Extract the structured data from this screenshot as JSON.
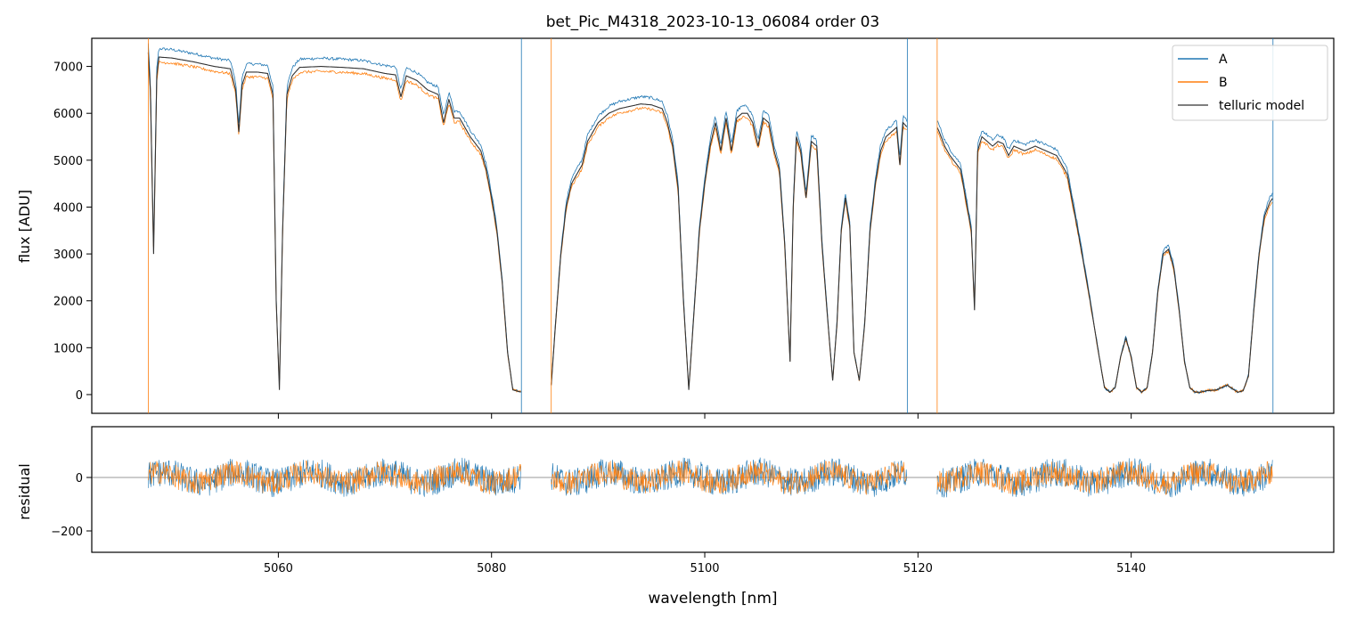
{
  "chart_data": [
    {
      "type": "line",
      "title": "bet_Pic_M4318_2023-10-13_06084  order 03",
      "xlabel": "",
      "ylabel": "flux [ADU]",
      "xlim": [
        5042.5,
        5159.0
      ],
      "ylim": [
        -400,
        7600
      ],
      "yticks": [
        0,
        1000,
        2000,
        3000,
        4000,
        5000,
        6000,
        7000
      ],
      "xticks": [
        5060,
        5080,
        5100,
        5120,
        5140
      ],
      "legend_position": "top-right",
      "legend": [
        "A",
        "B",
        "telluric model"
      ],
      "colors": {
        "A": "#1f77b4",
        "B": "#ff7f0e",
        "telluric model": "#333333"
      },
      "series": [
        {
          "name": "A"
        },
        {
          "name": "B"
        },
        {
          "name": "telluric model",
          "x": [
            5047.8,
            5048.0,
            5048.3,
            5048.6,
            5048.8,
            5050,
            5052,
            5054,
            5055.5,
            5056,
            5056.3,
            5056.6,
            5057,
            5058,
            5059,
            5059.5,
            5059.8,
            5060.1,
            5060.4,
            5060.8,
            5061.3,
            5062,
            5064,
            5066,
            5068,
            5069,
            5070,
            5071,
            5071.5,
            5072,
            5073,
            5074,
            5075,
            5075.5,
            5076,
            5076.5,
            5077,
            5078,
            5079,
            5079.5,
            5080,
            5080.5,
            5081,
            5081.5,
            5082,
            5082.8,
            5085.6,
            5086,
            5086.5,
            5087,
            5087.5,
            5088,
            5088.5,
            5089,
            5090,
            5091,
            5092,
            5093,
            5094,
            5095,
            5096,
            5096.5,
            5097,
            5097.5,
            5098,
            5098.5,
            5099,
            5099.5,
            5100,
            5100.5,
            5101,
            5101.5,
            5102,
            5102.5,
            5103,
            5103.5,
            5104,
            5104.5,
            5105,
            5105.5,
            5106,
            5106.5,
            5107,
            5107.5,
            5108,
            5108.3,
            5108.6,
            5109,
            5109.5,
            5110,
            5110.5,
            5111,
            5111.5,
            5112,
            5112.4,
            5112.8,
            5113.2,
            5113.6,
            5114,
            5114.5,
            5115,
            5115.5,
            5116,
            5116.5,
            5117,
            5117.5,
            5118,
            5118.3,
            5118.6,
            5119,
            5121.8,
            5122,
            5122.5,
            5123,
            5124,
            5125,
            5125.3,
            5125.6,
            5126,
            5127,
            5127.5,
            5128,
            5128.5,
            5129,
            5130,
            5131,
            5132,
            5133,
            5134,
            5135,
            5136,
            5137,
            5137.5,
            5138,
            5138.5,
            5139,
            5139.5,
            5140,
            5140.5,
            5141,
            5141.5,
            5142,
            5142.5,
            5143,
            5143.5,
            5144,
            5144.5,
            5145,
            5145.5,
            5146,
            5146.5,
            5147,
            5148,
            5149,
            5150,
            5150.5,
            5151,
            5151.5,
            5152,
            5152.5,
            5153,
            5153.3
          ],
          "y": [
            7300,
            6500,
            3000,
            6800,
            7200,
            7180,
            7100,
            7000,
            6950,
            6500,
            5600,
            6600,
            6880,
            6880,
            6850,
            6400,
            2000,
            100,
            3500,
            6400,
            6800,
            6980,
            7000,
            6980,
            6950,
            6900,
            6850,
            6820,
            6350,
            6800,
            6700,
            6500,
            6400,
            5800,
            6300,
            5900,
            5900,
            5500,
            5200,
            4800,
            4200,
            3500,
            2400,
            900,
            100,
            50,
            200,
            1500,
            3000,
            4000,
            4500,
            4700,
            4900,
            5400,
            5800,
            6000,
            6100,
            6150,
            6200,
            6180,
            6100,
            5800,
            5300,
            4400,
            2000,
            100,
            1800,
            3500,
            4500,
            5300,
            5800,
            5200,
            5900,
            5200,
            5900,
            6000,
            6000,
            5800,
            5300,
            5900,
            5800,
            5200,
            4800,
            3200,
            700,
            4000,
            5500,
            5200,
            4200,
            5400,
            5300,
            3200,
            1700,
            300,
            1500,
            3500,
            4200,
            3600,
            900,
            300,
            1500,
            3500,
            4500,
            5200,
            5500,
            5600,
            5700,
            4900,
            5800,
            5700,
            5700,
            5600,
            5300,
            5100,
            4800,
            3500,
            1800,
            5200,
            5500,
            5300,
            5400,
            5350,
            5100,
            5300,
            5200,
            5300,
            5200,
            5100,
            4700,
            3500,
            2200,
            800,
            150,
            50,
            150,
            800,
            1200,
            800,
            150,
            50,
            150,
            900,
            2200,
            3000,
            3100,
            2700,
            1800,
            700,
            150,
            50,
            50,
            80,
            100,
            200,
            50,
            80,
            400,
            1800,
            3000,
            3800,
            4100,
            4200
          ]
        }
      ]
    },
    {
      "type": "line",
      "title": "",
      "xlabel": "wavelength [nm]",
      "ylabel": "residual",
      "xlim": [
        5042.5,
        5159.0
      ],
      "ylim": [
        -280,
        190
      ],
      "yticks": [
        -200,
        0
      ],
      "xticks": [
        5060,
        5080,
        5100,
        5120,
        5140
      ],
      "reference_line": 0,
      "segments": [
        [
          5047.8,
          5082.8
        ],
        [
          5085.6,
          5119.0
        ],
        [
          5121.8,
          5153.3
        ]
      ],
      "series": [
        {
          "name": "A"
        },
        {
          "name": "B"
        }
      ]
    }
  ]
}
